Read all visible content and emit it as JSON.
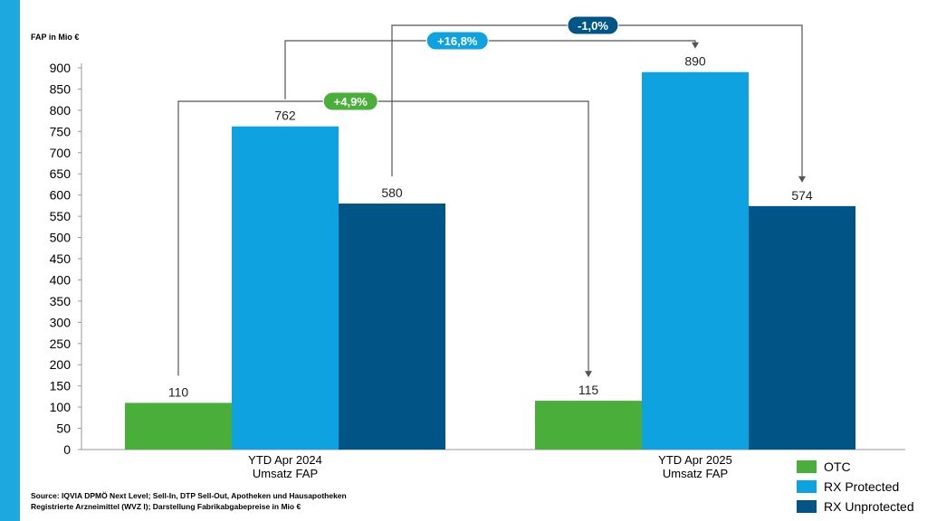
{
  "chart_data": {
    "type": "bar",
    "ylabel": "FAP in Mio €",
    "ylim": [
      0,
      900
    ],
    "yticks": [
      0,
      50,
      100,
      150,
      200,
      250,
      300,
      350,
      400,
      450,
      500,
      550,
      600,
      650,
      700,
      750,
      800,
      850,
      900
    ],
    "categories": [
      {
        "line1": "YTD Apr 2024",
        "line2": "Umsatz FAP"
      },
      {
        "line1": "YTD Apr 2025",
        "line2": "Umsatz FAP"
      }
    ],
    "series": [
      {
        "name": "OTC",
        "color": "#4aaf3a",
        "values": [
          110,
          115
        ]
      },
      {
        "name": "RX Protected",
        "color": "#0ea3e0",
        "values": [
          762,
          890
        ]
      },
      {
        "name": "RX Unprotected",
        "color": "#005587",
        "values": [
          580,
          574
        ]
      }
    ],
    "annotations": [
      {
        "label": "+4,9%",
        "series": "OTC",
        "color": "#4aaf3a"
      },
      {
        "label": "+16,8%",
        "series": "RX Protected",
        "color": "#0ea3e0"
      },
      {
        "label": "-1,0%",
        "series": "RX Unprotected",
        "color": "#005587"
      }
    ],
    "legend_position": "bottom-right"
  },
  "source": {
    "line1": "Source: IQVIA DPMÖ Next Level; Sell-In, DTP Sell-Out, Apotheken und Hausapotheken",
    "line2": "Registrierte Arzneimittel (WVZ I); Darstellung Fabrikabgabepreise in Mio €"
  }
}
